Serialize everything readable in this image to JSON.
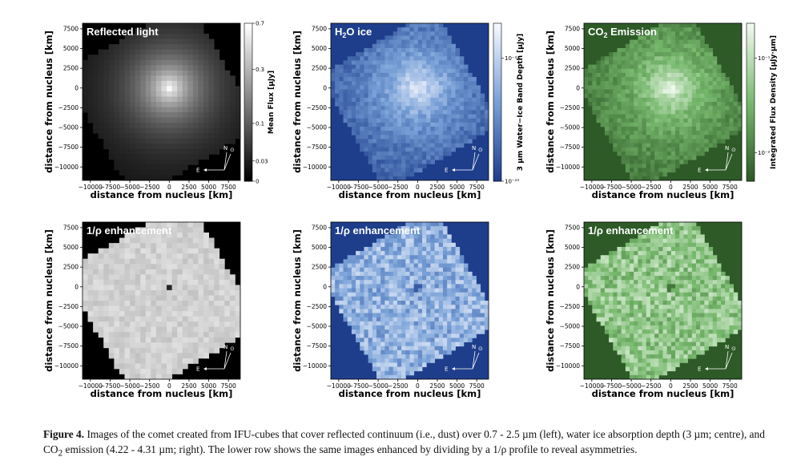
{
  "panels": [
    {
      "id": "refl",
      "title": "Reflected light",
      "cmap": "gray",
      "kind": "ref",
      "ylabel": "distance from nucleus [km]",
      "xlabel": "distance from nucleus [km]",
      "cbar": {
        "label": "Mean Flux [µJy]",
        "ticks": [
          {
            "label": "0.7",
            "v": 0.7
          },
          {
            "label": "0.3",
            "v": 0.3
          },
          {
            "label": "0.1",
            "v": 0.1
          },
          {
            "label": "0.03",
            "v": 0.03
          },
          {
            "label": "0",
            "v": 0
          }
        ],
        "scale": "asinh"
      }
    },
    {
      "id": "h2o",
      "title_parts": [
        "H",
        "2",
        "O ice"
      ],
      "cmap": "blue",
      "kind": "ref",
      "ylabel": "distance from nucleus [km]",
      "xlabel": "distance from nucleus [km]",
      "cbar": {
        "label": "3 µm Water−Ice Band Depth [µJy]",
        "ticks": [
          {
            "label": "10⁻²⁴",
            "v": 0.78
          },
          {
            "label": "10⁻²⁵",
            "v": 0.0
          }
        ],
        "scale": "frac"
      }
    },
    {
      "id": "co2",
      "title_parts": [
        "CO",
        "2",
        " Emission"
      ],
      "cmap": "green",
      "kind": "ref",
      "ylabel": "distance from nucleus [km]",
      "xlabel": "distance from nucleus [km]",
      "cbar": {
        "label": "Integrated Flux Density [µJy·µm]",
        "ticks": [
          {
            "label": "10⁻¹",
            "v": 0.78
          },
          {
            "label": "10⁻²",
            "v": 0.18
          }
        ],
        "scale": "frac"
      }
    },
    {
      "id": "refl_enh",
      "title": "1/ρ enhancement",
      "cmap": "gray",
      "kind": "enh",
      "ylabel": "distance from nucleus [km]",
      "xlabel": "distance from nucleus [km]"
    },
    {
      "id": "h2o_enh",
      "title": "1/ρ enhancement",
      "cmap": "blue",
      "kind": "enh",
      "ylabel": "distance from nucleus [km]",
      "xlabel": "distance from nucleus [km]"
    },
    {
      "id": "co2_enh",
      "title": "1/ρ enhancement",
      "cmap": "green",
      "kind": "enh",
      "ylabel": "distance from nucleus [km]",
      "xlabel": "distance from nucleus [km]"
    }
  ],
  "axes": {
    "yticks": [
      {
        "v": 7500,
        "label": "7500"
      },
      {
        "v": 5000,
        "label": "5000"
      },
      {
        "v": 2500,
        "label": "2500"
      },
      {
        "v": 0,
        "label": "0"
      },
      {
        "v": -2500,
        "label": "−2500"
      },
      {
        "v": -5000,
        "label": "−5000"
      },
      {
        "v": -7500,
        "label": "−7500"
      },
      {
        "v": -10000,
        "label": "−10000"
      }
    ],
    "xticks": [
      {
        "v": -10000,
        "label": "−10000"
      },
      {
        "v": -7500,
        "label": "−7500"
      },
      {
        "v": -5000,
        "label": "−5000"
      },
      {
        "v": -2500,
        "label": "−2500"
      },
      {
        "v": 0,
        "label": "0"
      },
      {
        "v": 2500,
        "label": "2500"
      },
      {
        "v": 5000,
        "label": "5000"
      },
      {
        "v": 7500,
        "label": "7500"
      }
    ],
    "xrange": [
      -11000,
      9000
    ],
    "yrange": [
      -11700,
      8200
    ]
  },
  "compass": {
    "north": "N",
    "east": "E",
    "sun": "⊙"
  },
  "colors": {
    "blue_bg": "#1e3e8c",
    "green_bg": "#2d5a27",
    "black_bg": "#000000"
  },
  "caption": {
    "label": "Figure 4.",
    "text_1": "Images of the comet created from IFU-cubes that cover reflected continuum (i.e., dust) over 0.7 - 2.5 µm (left), water ice absorption depth (3 µm; centre), and CO",
    "sub": "2",
    "text_2": " emission (4.22 - 4.31 µm; right). The lower row shows the same images enhanced by dividing by a 1/ρ profile to reveal asymmetries."
  }
}
